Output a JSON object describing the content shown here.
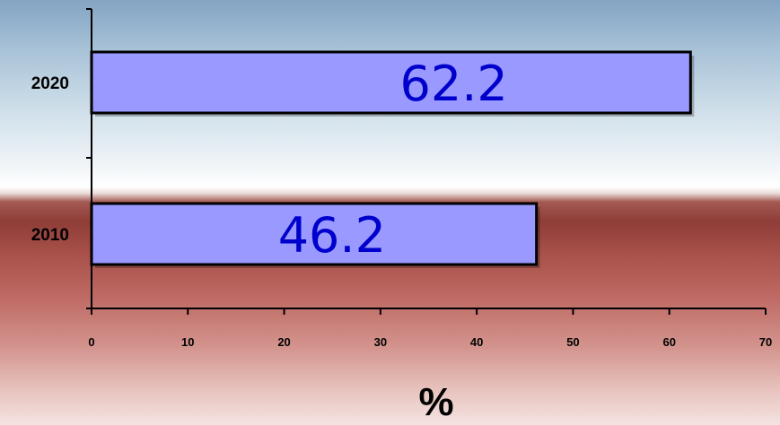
{
  "chart_data": {
    "type": "bar",
    "orientation": "horizontal",
    "categories": [
      "2010",
      "2020"
    ],
    "values": [
      46.2,
      62.2
    ],
    "data_labels": [
      "46.2",
      "62.2"
    ],
    "xlabel": "%",
    "ylabel": "",
    "xlim": [
      0,
      70
    ],
    "x_ticks": [
      "0",
      "10",
      "20",
      "30",
      "40",
      "50",
      "60",
      "70"
    ],
    "grid": false,
    "legend": "none",
    "colors": {
      "bar": "#9999ff",
      "data_label": "#0000cc"
    }
  }
}
